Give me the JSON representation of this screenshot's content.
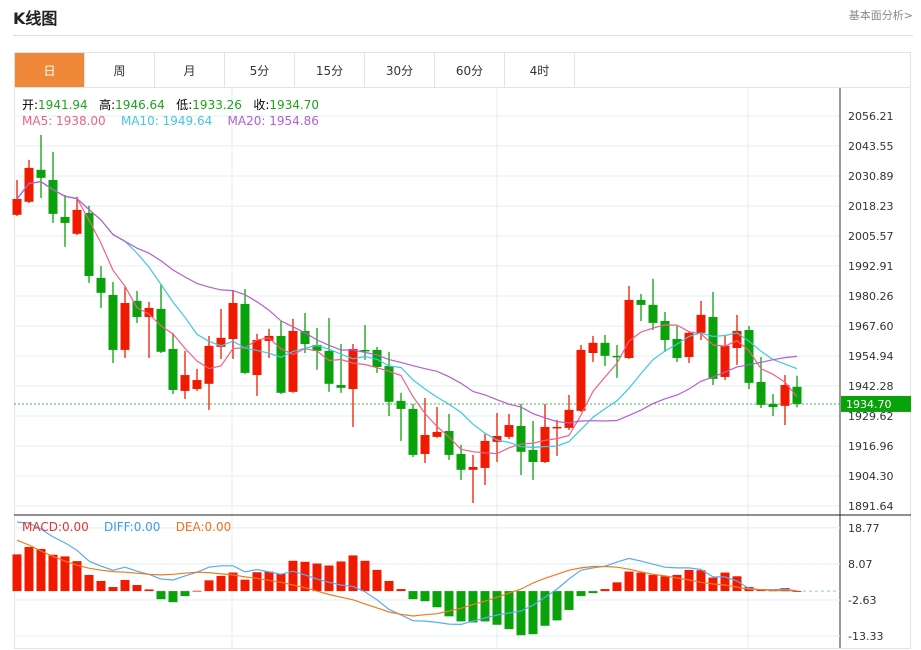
{
  "header": {
    "title": "K线图",
    "fundamental_link": "基本面分析>"
  },
  "tabs": [
    {
      "label": "日",
      "active": true
    },
    {
      "label": "周"
    },
    {
      "label": "月"
    },
    {
      "label": "5分"
    },
    {
      "label": "15分"
    },
    {
      "label": "30分"
    },
    {
      "label": "60分"
    },
    {
      "label": "4时"
    }
  ],
  "ohlc_info": {
    "open_label": "开:",
    "open": "1941.94",
    "high_label": "高:",
    "high": "1946.64",
    "low_label": "低:",
    "low": "1933.26",
    "close_label": "收:",
    "close": "1934.70"
  },
  "ma_info": {
    "ma5": "MA5: 1938.00",
    "ma10": "MA10: 1949.64",
    "ma20": "MA20: 1954.86"
  },
  "macd_info": {
    "macd": "MACD:0.00",
    "diff": "DIFF:0.00",
    "dea": "DEA:0.00"
  },
  "colors": {
    "up": "#f01a00",
    "down": "#0aa20a",
    "ma5": "#f0608a",
    "ma10": "#40c8e0",
    "ma20": "#b45ed0",
    "diff": "#5aaaf0",
    "dea": "#f07a20",
    "accent": "#f0883a"
  },
  "chart_data": [
    {
      "type": "candlestick",
      "title": "K线图",
      "price_axis_ticks": [
        "2056.21",
        "2043.55",
        "2030.89",
        "2018.23",
        "2005.57",
        "1992.91",
        "1980.26",
        "1967.60",
        "1954.94",
        "1942.28",
        "1929.62",
        "1916.96",
        "1904.30",
        "1891.64"
      ],
      "ylim": [
        1891.64,
        2056.21
      ],
      "current_price": "1934.70",
      "candles_ohlc": [
        [
          2014.5,
          2029.2,
          2014.0,
          2021.2
        ],
        [
          2020.0,
          2037.7,
          2019.5,
          2034.3
        ],
        [
          2033.5,
          2048.2,
          2021.6,
          2030.1
        ],
        [
          2029.2,
          2041.1,
          2011.1,
          2014.9
        ],
        [
          2013.6,
          2022.9,
          2001.0,
          2011.1
        ],
        [
          2006.5,
          2022.1,
          2006.0,
          2016.6
        ],
        [
          2015.3,
          2018.3,
          1985.8,
          1988.7
        ],
        [
          1987.9,
          1992.9,
          1975.2,
          1981.6
        ],
        [
          1980.7,
          1986.2,
          1952.0,
          1957.5
        ],
        [
          1957.5,
          1984.1,
          1954.1,
          1977.3
        ],
        [
          1978.2,
          1982.4,
          1968.9,
          1971.4
        ],
        [
          1971.4,
          1977.8,
          1954.1,
          1975.2
        ],
        [
          1974.8,
          1985.4,
          1956.2,
          1956.7
        ],
        [
          1957.9,
          1964.7,
          1938.9,
          1940.6
        ],
        [
          1940.2,
          1957.1,
          1936.8,
          1946.9
        ],
        [
          1941.0,
          1949.5,
          1940.2,
          1944.8
        ],
        [
          1943.2,
          1963.4,
          1932.2,
          1959.2
        ],
        [
          1958.8,
          1974.8,
          1953.7,
          1962.6
        ],
        [
          1962.1,
          1982.8,
          1953.7,
          1977.3
        ],
        [
          1976.9,
          1983.2,
          1947.4,
          1947.8
        ],
        [
          1946.9,
          1964.3,
          1938.1,
          1961.7
        ],
        [
          1961.3,
          1966.4,
          1954.1,
          1963.4
        ],
        [
          1963.4,
          1969.7,
          1938.9,
          1939.4
        ],
        [
          1939.8,
          1970.6,
          1939.4,
          1965.5
        ],
        [
          1965.5,
          1973.1,
          1956.2,
          1960.0
        ],
        [
          1959.6,
          1966.8,
          1949.1,
          1957.1
        ],
        [
          1957.1,
          1971.0,
          1939.8,
          1943.2
        ],
        [
          1942.7,
          1960.0,
          1939.4,
          1941.5
        ],
        [
          1941.0,
          1960.0,
          1925.0,
          1957.9
        ],
        [
          1957.5,
          1968.0,
          1953.3,
          1957.1
        ],
        [
          1957.5,
          1958.8,
          1947.8,
          1950.3
        ],
        [
          1950.7,
          1956.7,
          1929.6,
          1935.6
        ],
        [
          1936.0,
          1939.4,
          1919.1,
          1932.6
        ],
        [
          1932.6,
          1934.7,
          1912.3,
          1913.2
        ],
        [
          1913.6,
          1937.2,
          1909.8,
          1921.6
        ],
        [
          1920.8,
          1933.4,
          1920.4,
          1922.9
        ],
        [
          1923.3,
          1930.5,
          1911.1,
          1913.2
        ],
        [
          1913.6,
          1917.4,
          1902.6,
          1906.9
        ],
        [
          1906.9,
          1913.2,
          1892.9,
          1908.1
        ],
        [
          1907.7,
          1922.1,
          1900.5,
          1919.1
        ],
        [
          1918.7,
          1930.9,
          1910.2,
          1921.2
        ],
        [
          1920.8,
          1930.5,
          1919.9,
          1925.8
        ],
        [
          1925.4,
          1934.7,
          1904.7,
          1914.5
        ],
        [
          1915.3,
          1927.5,
          1902.6,
          1910.2
        ],
        [
          1910.2,
          1934.7,
          1909.8,
          1925.0
        ],
        [
          1924.6,
          1928.0,
          1912.8,
          1925.0
        ],
        [
          1924.6,
          1938.5,
          1923.7,
          1932.2
        ],
        [
          1931.8,
          1959.6,
          1931.3,
          1957.5
        ],
        [
          1956.2,
          1963.4,
          1952.4,
          1960.5
        ],
        [
          1960.5,
          1963.8,
          1950.7,
          1955.0
        ],
        [
          1955.0,
          1959.6,
          1945.7,
          1954.5
        ],
        [
          1954.1,
          1984.5,
          1953.7,
          1978.6
        ],
        [
          1978.6,
          1981.1,
          1969.7,
          1976.5
        ],
        [
          1976.5,
          1987.5,
          1965.9,
          1968.9
        ],
        [
          1969.7,
          1973.5,
          1956.7,
          1961.7
        ],
        [
          1962.1,
          1967.6,
          1952.4,
          1954.1
        ],
        [
          1954.5,
          1965.5,
          1952.0,
          1964.7
        ],
        [
          1964.7,
          1978.2,
          1961.7,
          1972.3
        ],
        [
          1971.4,
          1982.0,
          1942.7,
          1945.3
        ],
        [
          1946.1,
          1963.4,
          1944.8,
          1959.2
        ],
        [
          1958.3,
          1972.3,
          1951.2,
          1965.5
        ],
        [
          1965.9,
          1967.6,
          1941.0,
          1943.6
        ],
        [
          1944.0,
          1954.5,
          1933.0,
          1934.3
        ],
        [
          1934.7,
          1938.9,
          1929.6,
          1933.4
        ],
        [
          1933.9,
          1946.9,
          1925.8,
          1942.7
        ],
        [
          1941.94,
          1946.64,
          1933.26,
          1934.7
        ]
      ],
      "ma_periods": [
        5,
        10,
        20
      ]
    },
    {
      "type": "macd",
      "axis_ticks": [
        "18.77",
        "8.07",
        "-2.63",
        "-13.33"
      ],
      "ylim": [
        -16.9,
        22.3
      ],
      "macd": [
        10.9,
        13.1,
        12.5,
        10.8,
        10.3,
        8.9,
        4.8,
        3.0,
        1.2,
        3.3,
        1.8,
        0.5,
        -2.4,
        -3.3,
        -1.5,
        0.1,
        3.2,
        4.5,
        5.5,
        3.4,
        5.6,
        5.8,
        5.2,
        9.0,
        8.7,
        8.2,
        7.6,
        8.8,
        10.6,
        9.0,
        6.3,
        3.0,
        0.6,
        -2.4,
        -3.0,
        -4.8,
        -7.5,
        -9.0,
        -9.3,
        -9.0,
        -10.0,
        -11.3,
        -13.1,
        -12.8,
        -10.3,
        -8.7,
        -5.6,
        -1.5,
        -0.6,
        0.6,
        2.6,
        5.8,
        5.5,
        4.8,
        4.4,
        4.8,
        6.3,
        6.2,
        4.0,
        5.5,
        4.4,
        1.2,
        0.3,
        0.2,
        0.9,
        0.0
      ],
      "diff": [
        20.5,
        20.2,
        18.4,
        16.1,
        14.3,
        12.1,
        8.9,
        7.4,
        6.2,
        7.1,
        5.9,
        5.0,
        3.6,
        3.3,
        4.5,
        5.6,
        7.1,
        7.5,
        7.5,
        5.7,
        6.4,
        5.7,
        5.0,
        5.9,
        4.8,
        3.6,
        2.6,
        1.8,
        1.4,
        -0.2,
        -2.6,
        -5.4,
        -7.1,
        -8.8,
        -8.9,
        -9.3,
        -9.8,
        -9.9,
        -8.9,
        -8.0,
        -7.1,
        -6.5,
        -5.9,
        -4.2,
        -1.8,
        0.6,
        3.6,
        6.2,
        6.9,
        7.4,
        8.6,
        9.7,
        8.9,
        8.0,
        7.1,
        6.9,
        6.9,
        6.4,
        4.2,
        4.2,
        3.0,
        0.8,
        0.4,
        0.4,
        0.6,
        0.1
      ],
      "dea": [
        15.1,
        13.7,
        11.9,
        10.3,
        8.9,
        7.7,
        6.8,
        6.2,
        5.8,
        5.6,
        5.3,
        5.0,
        4.8,
        5.0,
        5.3,
        5.6,
        5.5,
        5.1,
        4.8,
        4.2,
        3.8,
        3.2,
        2.6,
        1.8,
        1.0,
        0.0,
        -1.0,
        -1.8,
        -2.6,
        -3.8,
        -5.0,
        -6.2,
        -6.9,
        -7.4,
        -7.0,
        -6.7,
        -5.9,
        -5.1,
        -4.0,
        -3.0,
        -1.8,
        -0.6,
        0.6,
        2.4,
        3.8,
        5.0,
        6.2,
        6.9,
        7.3,
        7.3,
        7.1,
        6.5,
        5.7,
        5.0,
        4.5,
        3.9,
        3.3,
        2.6,
        2.1,
        1.8,
        1.2,
        0.6,
        0.4,
        0.2,
        0.1,
        0.1
      ]
    }
  ]
}
